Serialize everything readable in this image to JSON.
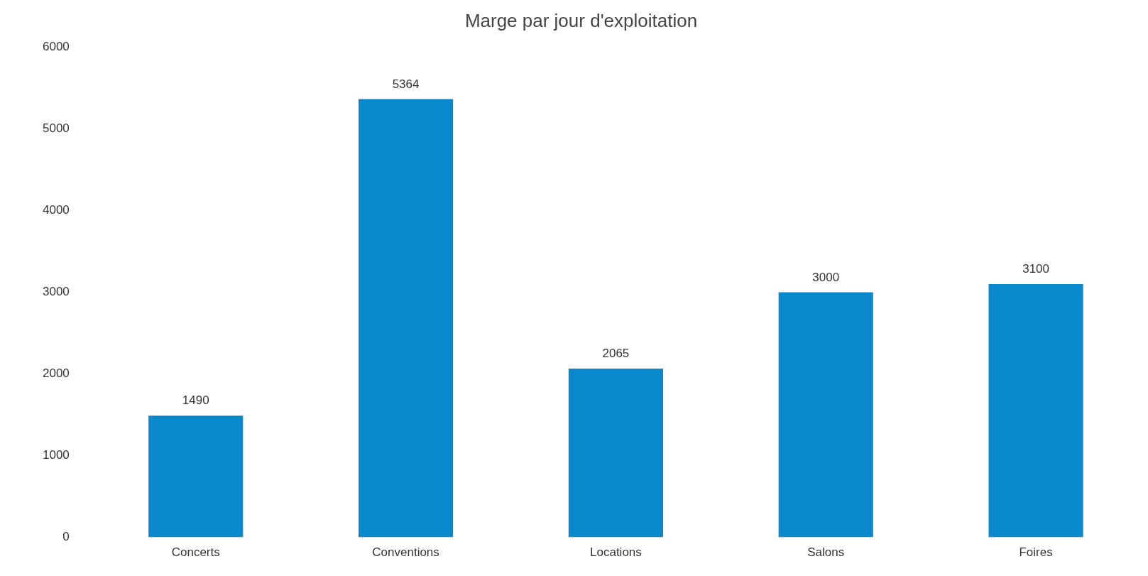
{
  "chart_data": {
    "type": "bar",
    "title": "Marge par jour d'exploitation",
    "categories": [
      "Concerts",
      "Conventions",
      "Locations",
      "Salons",
      "Foires"
    ],
    "values": [
      1490,
      5364,
      2065,
      3000,
      3100
    ],
    "color": "#0a88cc",
    "ylim": [
      0,
      6000
    ],
    "yticks": [
      0,
      1000,
      2000,
      3000,
      4000,
      5000,
      6000
    ],
    "data_labels": true
  }
}
